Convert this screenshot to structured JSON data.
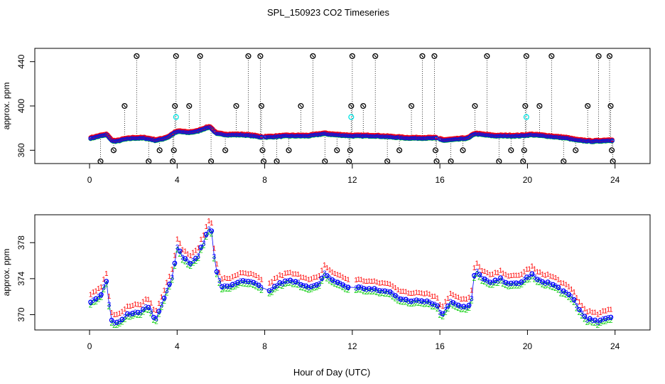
{
  "title": "SPL_150923  CO2 Timeseries",
  "xlabel": "Hour of Day (UTC)",
  "chart_data": [
    {
      "type": "scatter",
      "name": "top-panel",
      "ylabel": "approx. ppm",
      "xlim": [
        -2.5,
        25.6
      ],
      "ylim": [
        348,
        452
      ],
      "xticks": [
        0,
        4,
        8,
        12,
        16,
        20,
        24
      ],
      "yticks": [
        360,
        400,
        440
      ],
      "colors": {
        "red": "#ff0000",
        "blue": "#0000ff",
        "green": "#00cc00",
        "cyan": "#00e5e5",
        "black": "#000000"
      },
      "series_line": [
        [
          0.1,
          371
        ],
        [
          0.5,
          373
        ],
        [
          0.8,
          374
        ],
        [
          1.0,
          369
        ],
        [
          1.2,
          368
        ],
        [
          1.6,
          370
        ],
        [
          2.0,
          371
        ],
        [
          2.5,
          371
        ],
        [
          2.8,
          370
        ],
        [
          3.0,
          369
        ],
        [
          3.3,
          370
        ],
        [
          3.6,
          372
        ],
        [
          3.9,
          376
        ],
        [
          4.1,
          377
        ],
        [
          4.5,
          376
        ],
        [
          4.9,
          377
        ],
        [
          5.3,
          380
        ],
        [
          5.5,
          381
        ],
        [
          5.8,
          375
        ],
        [
          6.3,
          374
        ],
        [
          7.0,
          374
        ],
        [
          7.5,
          373
        ],
        [
          7.8,
          372
        ],
        [
          8.2,
          372
        ],
        [
          9.0,
          373
        ],
        [
          10.0,
          373
        ],
        [
          10.7,
          375
        ],
        [
          11.2,
          374
        ],
        [
          12.0,
          373
        ],
        [
          13.0,
          373
        ],
        [
          13.8,
          372
        ],
        [
          14.5,
          371
        ],
        [
          15.3,
          371
        ],
        [
          15.8,
          371
        ],
        [
          16.2,
          369
        ],
        [
          16.8,
          370
        ],
        [
          17.3,
          371
        ],
        [
          17.6,
          375
        ],
        [
          18.0,
          374
        ],
        [
          18.5,
          373
        ],
        [
          19.0,
          373
        ],
        [
          19.6,
          373
        ],
        [
          20.2,
          374
        ],
        [
          20.8,
          373
        ],
        [
          21.3,
          372
        ],
        [
          21.8,
          371
        ],
        [
          22.3,
          369
        ],
        [
          23.0,
          368
        ],
        [
          23.8,
          369
        ]
      ],
      "outliers": [
        [
          0.5,
          350
        ],
        [
          1.1,
          360
        ],
        [
          1.6,
          400
        ],
        [
          2.15,
          445
        ],
        [
          2.7,
          350
        ],
        [
          3.2,
          360
        ],
        [
          3.8,
          350
        ],
        [
          3.85,
          360
        ],
        [
          3.9,
          400
        ],
        [
          3.95,
          445
        ],
        [
          4.55,
          400
        ],
        [
          5.05,
          445
        ],
        [
          5.55,
          350
        ],
        [
          6.2,
          360
        ],
        [
          6.7,
          400
        ],
        [
          7.25,
          445
        ],
        [
          7.8,
          445
        ],
        [
          7.85,
          400
        ],
        [
          7.9,
          360
        ],
        [
          7.95,
          350
        ],
        [
          8.55,
          350
        ],
        [
          9.1,
          360
        ],
        [
          9.65,
          400
        ],
        [
          10.2,
          445
        ],
        [
          10.75,
          350
        ],
        [
          11.3,
          360
        ],
        [
          11.85,
          350
        ],
        [
          11.9,
          360
        ],
        [
          11.95,
          400
        ],
        [
          12.0,
          445
        ],
        [
          12.5,
          400
        ],
        [
          13.05,
          445
        ],
        [
          13.6,
          350
        ],
        [
          14.15,
          360
        ],
        [
          14.7,
          400
        ],
        [
          15.2,
          445
        ],
        [
          15.75,
          445
        ],
        [
          15.8,
          360
        ],
        [
          15.85,
          350
        ],
        [
          16.5,
          350
        ],
        [
          17.05,
          360
        ],
        [
          17.6,
          400
        ],
        [
          18.15,
          445
        ],
        [
          18.7,
          350
        ],
        [
          19.25,
          360
        ],
        [
          19.8,
          350
        ],
        [
          19.85,
          360
        ],
        [
          19.9,
          400
        ],
        [
          19.95,
          445
        ],
        [
          20.55,
          400
        ],
        [
          21.1,
          445
        ],
        [
          21.65,
          350
        ],
        [
          22.2,
          360
        ],
        [
          22.75,
          400
        ],
        [
          23.25,
          445
        ],
        [
          23.75,
          445
        ],
        [
          23.8,
          400
        ],
        [
          23.85,
          360
        ],
        [
          23.9,
          350
        ]
      ],
      "cyan_points": [
        [
          3.95,
          390
        ],
        [
          11.95,
          390
        ],
        [
          19.95,
          390
        ]
      ]
    },
    {
      "type": "scatter",
      "name": "bottom-panel",
      "ylabel": "approx. ppm",
      "xlim": [
        -2.5,
        25.6
      ],
      "ylim": [
        368.3,
        381.1
      ],
      "xticks": [
        0,
        4,
        8,
        12,
        16,
        20,
        24
      ],
      "yticks": [
        370,
        374,
        378
      ],
      "marker_labels": [
        "1",
        "2",
        "3"
      ],
      "series": [
        {
          "name": "1",
          "color": "#ff0000",
          "offset": 0.9
        },
        {
          "name": "2",
          "color": "#00cc00",
          "offset": -0.3
        },
        {
          "name": "3",
          "color": "#0000ff",
          "offset": 0.0
        }
      ],
      "series_line": [
        [
          0.05,
          371.5
        ],
        [
          0.3,
          371.8
        ],
        [
          0.55,
          372.2
        ],
        [
          0.75,
          374.0
        ],
        [
          0.85,
          372.3
        ],
        [
          0.95,
          369.6
        ],
        [
          1.1,
          369.0
        ],
        [
          1.4,
          369.2
        ],
        [
          1.7,
          370.0
        ],
        [
          2.0,
          370.3
        ],
        [
          2.3,
          370.2
        ],
        [
          2.6,
          371.0
        ],
        [
          2.8,
          370.6
        ],
        [
          3.0,
          369.4
        ],
        [
          3.2,
          370.6
        ],
        [
          3.5,
          372.5
        ],
        [
          3.8,
          374.5
        ],
        [
          4.0,
          377.5
        ],
        [
          4.3,
          376.3
        ],
        [
          4.6,
          375.7
        ],
        [
          4.9,
          376.3
        ],
        [
          5.2,
          378.0
        ],
        [
          5.4,
          379.4
        ],
        [
          5.55,
          379.9
        ],
        [
          5.75,
          375.2
        ],
        [
          6.0,
          373.2
        ],
        [
          6.3,
          373.1
        ],
        [
          6.8,
          373.7
        ],
        [
          7.3,
          373.7
        ],
        [
          7.7,
          373.3
        ],
        [
          7.9,
          372.8
        ],
        [
          8.2,
          372.6
        ],
        [
          8.6,
          373.4
        ],
        [
          9.1,
          373.8
        ],
        [
          9.6,
          373.5
        ],
        [
          10.1,
          373.1
        ],
        [
          10.5,
          373.4
        ],
        [
          10.75,
          374.7
        ],
        [
          11.0,
          374.0
        ],
        [
          11.5,
          373.4
        ],
        [
          11.95,
          372.9
        ],
        [
          12.1,
          373.1
        ],
        [
          12.7,
          372.9
        ],
        [
          13.3,
          372.7
        ],
        [
          13.8,
          372.5
        ],
        [
          14.2,
          371.8
        ],
        [
          14.6,
          371.5
        ],
        [
          15.0,
          371.7
        ],
        [
          15.5,
          371.5
        ],
        [
          15.9,
          371.0
        ],
        [
          16.05,
          370.0
        ],
        [
          16.25,
          370.5
        ],
        [
          16.5,
          371.6
        ],
        [
          16.9,
          371.0
        ],
        [
          17.3,
          370.8
        ],
        [
          17.45,
          371.8
        ],
        [
          17.6,
          375.0
        ],
        [
          17.9,
          374.2
        ],
        [
          18.3,
          373.5
        ],
        [
          18.8,
          374.0
        ],
        [
          19.2,
          373.4
        ],
        [
          19.6,
          373.5
        ],
        [
          19.9,
          374.0
        ],
        [
          20.2,
          374.5
        ],
        [
          20.5,
          373.8
        ],
        [
          20.9,
          373.6
        ],
        [
          21.3,
          373.2
        ],
        [
          21.7,
          372.5
        ],
        [
          22.1,
          371.8
        ],
        [
          22.4,
          370.4
        ],
        [
          22.7,
          369.6
        ],
        [
          23.2,
          369.2
        ],
        [
          23.8,
          369.8
        ]
      ]
    }
  ]
}
